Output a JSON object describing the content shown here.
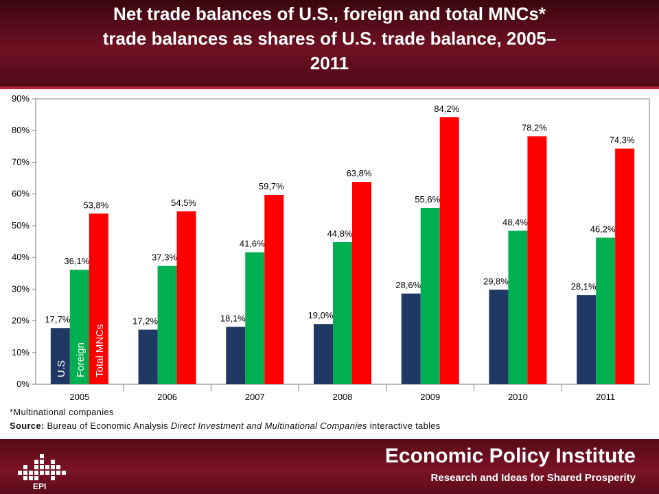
{
  "slide": {
    "title": "Net trade balances of U.S., foreign and total MNCs*\ntrade balances as shares of U.S. trade balance, 2005–\n2011",
    "footnote": "*Multinational companies",
    "source_label": "Source:",
    "source_text_1": "Bureau of Economic Analysis ",
    "source_italic": "Direct Investment and Multinational Companies",
    "source_text_2": " interactive tables"
  },
  "footer": {
    "org_name": "Economic Policy Institute",
    "tagline": "Research and Ideas for Shared Prosperity",
    "logo_label": "EPI"
  },
  "colors": {
    "us": "#1f3864",
    "foreign": "#00b050",
    "total": "#ff0000",
    "header": "#6e1022",
    "footer": "#7a1326"
  },
  "chart_data": {
    "type": "bar",
    "categories": [
      "2005",
      "2006",
      "2007",
      "2008",
      "2009",
      "2010",
      "2011"
    ],
    "series": [
      {
        "name": "U.S",
        "values": [
          17.7,
          17.2,
          18.1,
          19.0,
          28.6,
          29.8,
          28.1
        ],
        "labels": [
          "17,7%",
          "17,2%",
          "18,1%",
          "19,0%",
          "28,6%",
          "29,8%",
          "28,1%"
        ],
        "color": "#1f3864"
      },
      {
        "name": "Foreign",
        "values": [
          36.1,
          37.3,
          41.6,
          44.8,
          55.6,
          48.4,
          46.2
        ],
        "labels": [
          "36,1%",
          "37,3%",
          "41,6%",
          "44,8%",
          "55,6%",
          "48,4%",
          "46,2%"
        ],
        "color": "#00b050"
      },
      {
        "name": "Total MNCs",
        "values": [
          53.8,
          54.5,
          59.7,
          63.8,
          84.2,
          78.2,
          74.3
        ],
        "labels": [
          "53,8%",
          "54,5%",
          "59,7%",
          "63,8%",
          "84,2%",
          "78,2%",
          "74,3%"
        ],
        "color": "#ff0000"
      }
    ],
    "ylim": [
      0,
      90
    ],
    "yticks": [
      "0%",
      "10%",
      "20%",
      "30%",
      "40%",
      "50%",
      "60%",
      "70%",
      "80%",
      "90%"
    ],
    "ytick_values": [
      0,
      10,
      20,
      30,
      40,
      50,
      60,
      70,
      80,
      90
    ],
    "grid": false,
    "legend": "series names printed vertically inside the 2005 bars"
  }
}
